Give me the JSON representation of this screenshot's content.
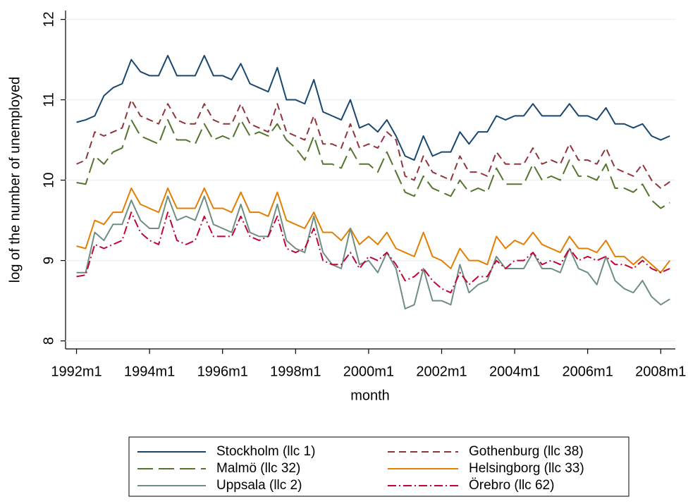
{
  "chart_data": {
    "type": "line",
    "x_label": "month",
    "y_label": "log of the number of unemployed",
    "x": [
      1992,
      1992.25,
      1992.5,
      1992.75,
      1993,
      1993.25,
      1993.5,
      1993.75,
      1994,
      1994.25,
      1994.5,
      1994.75,
      1995,
      1995.25,
      1995.5,
      1995.75,
      1996,
      1996.25,
      1996.5,
      1996.75,
      1997,
      1997.25,
      1997.5,
      1997.75,
      1998,
      1998.25,
      1998.5,
      1998.75,
      1999,
      1999.25,
      1999.5,
      1999.75,
      2000,
      2000.25,
      2000.5,
      2000.75,
      2001,
      2001.25,
      2001.5,
      2001.75,
      2002,
      2002.25,
      2002.5,
      2002.75,
      2003,
      2003.25,
      2003.5,
      2003.75,
      2004,
      2004.25,
      2004.5,
      2004.75,
      2005,
      2005.25,
      2005.5,
      2005.75,
      2006,
      2006.25,
      2006.5,
      2006.75,
      2007,
      2007.25,
      2007.5,
      2007.75,
      2008,
      2008.25
    ],
    "xlim": [
      1991.7,
      2008.4
    ],
    "xticks": [
      {
        "value": 1992,
        "label": "1992m1"
      },
      {
        "value": 1994,
        "label": "1994m1"
      },
      {
        "value": 1996,
        "label": "1996m1"
      },
      {
        "value": 1998,
        "label": "1998m1"
      },
      {
        "value": 2000,
        "label": "2000m1"
      },
      {
        "value": 2002,
        "label": "2002m1"
      },
      {
        "value": 2004,
        "label": "2004m1"
      },
      {
        "value": 2006,
        "label": "2006m1"
      },
      {
        "value": 2008,
        "label": "2008m1"
      }
    ],
    "ylim": [
      7.9,
      12.11
    ],
    "yticks": [
      8,
      9,
      10,
      11,
      12
    ],
    "grid": true,
    "series": [
      {
        "name": "Stockholm (llc 1)",
        "color": "#1a476f",
        "style": "solid",
        "values": [
          10.72,
          10.75,
          10.8,
          11.05,
          11.15,
          11.2,
          11.5,
          11.35,
          11.3,
          11.3,
          11.55,
          11.3,
          11.3,
          11.3,
          11.55,
          11.3,
          11.3,
          11.25,
          11.45,
          11.2,
          11.15,
          11.1,
          11.4,
          11.0,
          11.0,
          10.95,
          11.25,
          10.85,
          10.8,
          10.75,
          11.0,
          10.65,
          10.7,
          10.6,
          10.75,
          10.55,
          10.3,
          10.25,
          10.55,
          10.3,
          10.35,
          10.35,
          10.6,
          10.45,
          10.6,
          10.6,
          10.8,
          10.75,
          10.8,
          10.8,
          10.95,
          10.8,
          10.8,
          10.8,
          10.95,
          10.8,
          10.8,
          10.75,
          10.9,
          10.7,
          10.7,
          10.65,
          10.7,
          10.55,
          10.5,
          10.55
        ]
      },
      {
        "name": "Gothenburg (llc 38)",
        "color": "#90353b",
        "style": "dash",
        "values": [
          10.2,
          10.25,
          10.6,
          10.55,
          10.6,
          10.65,
          11.0,
          10.8,
          10.75,
          10.7,
          10.95,
          10.75,
          10.7,
          10.7,
          10.95,
          10.75,
          10.7,
          10.7,
          10.95,
          10.7,
          10.65,
          10.6,
          10.95,
          10.6,
          10.55,
          10.5,
          10.8,
          10.45,
          10.45,
          10.4,
          10.7,
          10.4,
          10.45,
          10.4,
          10.6,
          10.5,
          10.05,
          10.0,
          10.3,
          10.1,
          10.05,
          10.0,
          10.3,
          10.1,
          10.1,
          10.05,
          10.35,
          10.2,
          10.2,
          10.2,
          10.4,
          10.2,
          10.25,
          10.2,
          10.45,
          10.25,
          10.25,
          10.2,
          10.4,
          10.15,
          10.1,
          10.05,
          10.2,
          10.0,
          9.9,
          9.98
        ]
      },
      {
        "name": "Malmö (llc 32)",
        "color": "#55752f",
        "style": "longdash",
        "values": [
          9.97,
          9.95,
          10.3,
          10.2,
          10.35,
          10.4,
          10.75,
          10.55,
          10.5,
          10.45,
          10.75,
          10.5,
          10.5,
          10.45,
          10.7,
          10.5,
          10.55,
          10.5,
          10.75,
          10.55,
          10.6,
          10.55,
          10.7,
          10.5,
          10.4,
          10.25,
          10.55,
          10.2,
          10.2,
          10.15,
          10.4,
          10.2,
          10.2,
          10.1,
          10.35,
          10.1,
          9.85,
          9.8,
          10.05,
          9.9,
          9.85,
          9.8,
          10.0,
          9.85,
          9.9,
          9.85,
          10.15,
          9.95,
          9.95,
          9.95,
          10.2,
          10.0,
          10.05,
          10.0,
          10.25,
          10.05,
          10.05,
          10.0,
          10.2,
          9.9,
          9.9,
          9.85,
          9.95,
          9.75,
          9.65,
          9.72
        ]
      },
      {
        "name": "Helsingborg (llc 33)",
        "color": "#e37e00",
        "style": "solid",
        "values": [
          9.18,
          9.15,
          9.5,
          9.45,
          9.6,
          9.6,
          9.9,
          9.7,
          9.65,
          9.6,
          9.9,
          9.65,
          9.65,
          9.65,
          9.9,
          9.65,
          9.65,
          9.6,
          9.85,
          9.6,
          9.6,
          9.55,
          9.85,
          9.5,
          9.45,
          9.4,
          9.6,
          9.35,
          9.35,
          9.25,
          9.4,
          9.2,
          9.3,
          9.2,
          9.35,
          9.15,
          9.1,
          9.05,
          9.35,
          9.05,
          9.0,
          8.9,
          9.15,
          9.0,
          9.0,
          8.95,
          9.3,
          9.15,
          9.25,
          9.2,
          9.35,
          9.2,
          9.15,
          9.1,
          9.3,
          9.15,
          9.15,
          9.1,
          9.25,
          9.05,
          9.05,
          8.95,
          9.05,
          8.95,
          8.85,
          9.0
        ]
      },
      {
        "name": "Uppsala (llc 2)",
        "color": "#6e8e84",
        "style": "solid",
        "values": [
          8.85,
          8.85,
          9.35,
          9.25,
          9.45,
          9.45,
          9.75,
          9.5,
          9.4,
          9.4,
          9.8,
          9.5,
          9.55,
          9.5,
          9.8,
          9.45,
          9.4,
          9.35,
          9.7,
          9.35,
          9.3,
          9.3,
          9.7,
          9.25,
          9.15,
          9.1,
          9.55,
          9.1,
          8.95,
          8.9,
          9.4,
          8.95,
          9.0,
          8.85,
          9.1,
          8.9,
          8.4,
          8.45,
          8.9,
          8.5,
          8.5,
          8.45,
          8.95,
          8.6,
          8.7,
          8.75,
          9.05,
          8.9,
          8.9,
          8.9,
          9.1,
          8.9,
          8.9,
          8.85,
          9.15,
          8.9,
          8.85,
          8.7,
          9.05,
          8.75,
          8.65,
          8.6,
          8.75,
          8.55,
          8.45,
          8.52
        ]
      },
      {
        "name": "Örebro (llc 62)",
        "color": "#c10534",
        "style": "dashdot",
        "values": [
          8.8,
          8.82,
          9.2,
          9.15,
          9.2,
          9.25,
          9.6,
          9.35,
          9.25,
          9.2,
          9.6,
          9.25,
          9.2,
          9.25,
          9.55,
          9.3,
          9.3,
          9.3,
          9.55,
          9.3,
          9.25,
          9.3,
          9.55,
          9.15,
          9.1,
          9.15,
          9.4,
          9.0,
          8.95,
          8.95,
          9.1,
          8.9,
          9.05,
          9.0,
          9.1,
          8.95,
          8.75,
          8.8,
          8.9,
          8.75,
          8.65,
          8.6,
          8.85,
          8.7,
          8.8,
          8.8,
          9.0,
          8.9,
          9.0,
          9.0,
          9.1,
          8.95,
          9.0,
          8.95,
          9.15,
          9.0,
          9.05,
          9.0,
          9.05,
          8.95,
          8.95,
          8.9,
          9.0,
          8.9,
          8.85,
          8.9
        ]
      }
    ]
  }
}
